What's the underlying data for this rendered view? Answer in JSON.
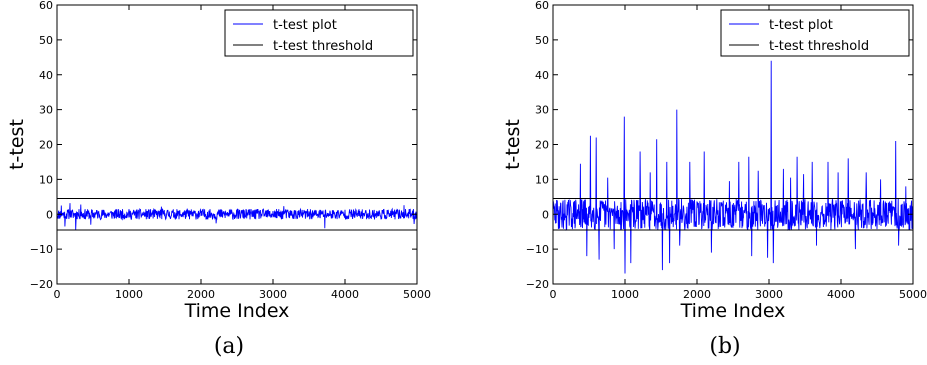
{
  "chart_data": [
    {
      "type": "line",
      "caption": "(a)",
      "xlabel": "Time Index",
      "ylabel": "t-test",
      "xlim": [
        0,
        5000
      ],
      "ylim": [
        -20,
        60
      ],
      "xticks": [
        "0",
        "1000",
        "2000",
        "3000",
        "4000",
        "5000"
      ],
      "yticks": [
        "−20",
        "−10",
        "0",
        "10",
        "20",
        "30",
        "40",
        "50",
        "60"
      ],
      "legend_position": "top-right",
      "grid": false,
      "series": [
        {
          "name": "t-test plot",
          "color": "#0000ff",
          "style": "noise",
          "seed": 11,
          "noise_amplitude": 1.5,
          "spikes": [
            {
              "x": 60,
              "y": 2.5
            },
            {
              "x": 110,
              "y": -3.5
            },
            {
              "x": 180,
              "y": 3.2
            },
            {
              "x": 260,
              "y": -4.5
            },
            {
              "x": 330,
              "y": 2.8
            },
            {
              "x": 470,
              "y": -3.0
            },
            {
              "x": 1450,
              "y": 2.2
            },
            {
              "x": 2210,
              "y": -2.6
            },
            {
              "x": 3150,
              "y": 2.3
            },
            {
              "x": 3720,
              "y": -4.0
            },
            {
              "x": 4820,
              "y": 2.6
            },
            {
              "x": 4960,
              "y": -2.8
            }
          ]
        },
        {
          "name": "t-test threshold",
          "color": "#000000",
          "style": "threshold",
          "levels": [
            4.5,
            -4.5
          ]
        }
      ]
    },
    {
      "type": "line",
      "caption": "(b)",
      "xlabel": "Time Index",
      "ylabel": "t-test",
      "xlim": [
        0,
        5000
      ],
      "ylim": [
        -20,
        60
      ],
      "xticks": [
        "0",
        "1000",
        "2000",
        "3000",
        "4000",
        "5000"
      ],
      "yticks": [
        "−20",
        "−10",
        "0",
        "10",
        "20",
        "30",
        "40",
        "50",
        "60"
      ],
      "legend_position": "top-right",
      "grid": false,
      "series": [
        {
          "name": "t-test plot",
          "color": "#0000ff",
          "style": "noise",
          "seed": 29,
          "noise_amplitude": 4.5,
          "spikes": [
            {
              "x": 380,
              "y": 14.5
            },
            {
              "x": 470,
              "y": -12.0
            },
            {
              "x": 520,
              "y": 22.5
            },
            {
              "x": 600,
              "y": 22.0
            },
            {
              "x": 640,
              "y": -13.0
            },
            {
              "x": 760,
              "y": 10.5
            },
            {
              "x": 850,
              "y": -10.0
            },
            {
              "x": 990,
              "y": 28.0
            },
            {
              "x": 1000,
              "y": -17.0
            },
            {
              "x": 1080,
              "y": -14.0
            },
            {
              "x": 1210,
              "y": 18.0
            },
            {
              "x": 1350,
              "y": 12.0
            },
            {
              "x": 1440,
              "y": 21.5
            },
            {
              "x": 1520,
              "y": -16.0
            },
            {
              "x": 1580,
              "y": 15.0
            },
            {
              "x": 1620,
              "y": -14.0
            },
            {
              "x": 1720,
              "y": 30.0
            },
            {
              "x": 1760,
              "y": -9.0
            },
            {
              "x": 1900,
              "y": 15.0
            },
            {
              "x": 2100,
              "y": 18.0
            },
            {
              "x": 2200,
              "y": -11.0
            },
            {
              "x": 2450,
              "y": 9.5
            },
            {
              "x": 2580,
              "y": 15.0
            },
            {
              "x": 2720,
              "y": 16.5
            },
            {
              "x": 2760,
              "y": -12.0
            },
            {
              "x": 2850,
              "y": 12.5
            },
            {
              "x": 2980,
              "y": -12.5
            },
            {
              "x": 3030,
              "y": 44.0
            },
            {
              "x": 3060,
              "y": -14.0
            },
            {
              "x": 3200,
              "y": 13.0
            },
            {
              "x": 3300,
              "y": 10.5
            },
            {
              "x": 3390,
              "y": 16.5
            },
            {
              "x": 3480,
              "y": 11.5
            },
            {
              "x": 3600,
              "y": 15.0
            },
            {
              "x": 3660,
              "y": -9.0
            },
            {
              "x": 3820,
              "y": 15.0
            },
            {
              "x": 3960,
              "y": 12.0
            },
            {
              "x": 4100,
              "y": 16.0
            },
            {
              "x": 4200,
              "y": -10.0
            },
            {
              "x": 4350,
              "y": 12.0
            },
            {
              "x": 4550,
              "y": 10.0
            },
            {
              "x": 4760,
              "y": 21.0
            },
            {
              "x": 4800,
              "y": -9.0
            },
            {
              "x": 4900,
              "y": 8.0
            }
          ]
        },
        {
          "name": "t-test threshold",
          "color": "#000000",
          "style": "threshold",
          "levels": [
            4.5,
            -4.5
          ]
        }
      ]
    }
  ]
}
